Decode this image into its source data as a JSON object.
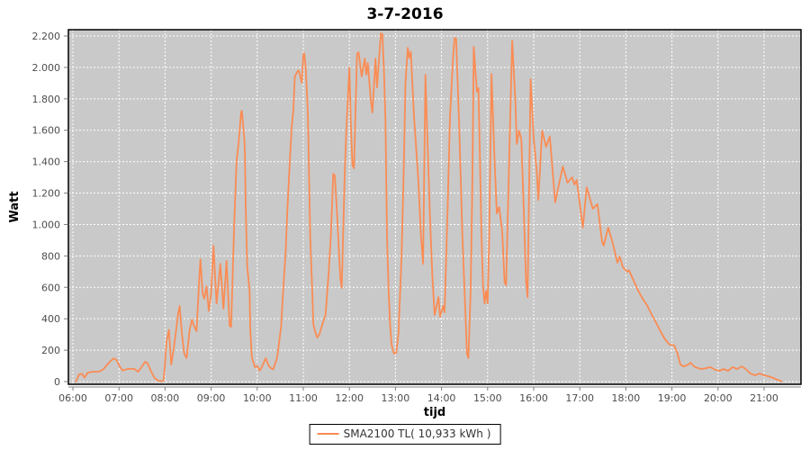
{
  "chart_data": {
    "type": "line",
    "title": "3-7-2016",
    "xlabel": "tijd",
    "ylabel": "Watt",
    "grid": true,
    "legend_position": "bottom-center",
    "x_axis": {
      "unit": "time",
      "first_tick": "06:00",
      "last_tick": "21:00",
      "tick_interval_minutes": 60
    },
    "y_axis": {
      "min": 0,
      "max": 2240,
      "tick_interval": 200
    },
    "x_ticks": [
      {
        "hour": 6,
        "label": "06:00"
      },
      {
        "hour": 7,
        "label": "07:00"
      },
      {
        "hour": 8,
        "label": "08:00"
      },
      {
        "hour": 9,
        "label": "09:00"
      },
      {
        "hour": 10,
        "label": "10:00"
      },
      {
        "hour": 11,
        "label": "11:00"
      },
      {
        "hour": 12,
        "label": "12:00"
      },
      {
        "hour": 13,
        "label": "13:00"
      },
      {
        "hour": 14,
        "label": "14:00"
      },
      {
        "hour": 15,
        "label": "15:00"
      },
      {
        "hour": 16,
        "label": "16:00"
      },
      {
        "hour": 17,
        "label": "17:00"
      },
      {
        "hour": 18,
        "label": "18:00"
      },
      {
        "hour": 19,
        "label": "19:00"
      },
      {
        "hour": 20,
        "label": "20:00"
      },
      {
        "hour": 21,
        "label": "21:00"
      }
    ],
    "y_ticks": [
      {
        "value": 0,
        "label": "0"
      },
      {
        "value": 200,
        "label": "200"
      },
      {
        "value": 400,
        "label": "400"
      },
      {
        "value": 600,
        "label": "600"
      },
      {
        "value": 800,
        "label": "800"
      },
      {
        "value": 1000,
        "label": "1.000"
      },
      {
        "value": 1200,
        "label": "1.200"
      },
      {
        "value": 1400,
        "label": "1.400"
      },
      {
        "value": 1600,
        "label": "1.600"
      },
      {
        "value": 1800,
        "label": "1.800"
      },
      {
        "value": 2000,
        "label": "2.000"
      },
      {
        "value": 2200,
        "label": "2.200"
      }
    ],
    "series": [
      {
        "name": "SMA2100 TL( 10,933 kWh )",
        "color": "#fa8c54",
        "points_min_watt": [
          [
            364,
            0
          ],
          [
            368,
            45
          ],
          [
            372,
            50
          ],
          [
            375,
            25
          ],
          [
            379,
            55
          ],
          [
            384,
            62
          ],
          [
            390,
            63
          ],
          [
            395,
            65
          ],
          [
            400,
            80
          ],
          [
            405,
            110
          ],
          [
            410,
            135
          ],
          [
            413,
            148
          ],
          [
            417,
            137
          ],
          [
            421,
            95
          ],
          [
            425,
            70
          ],
          [
            429,
            78
          ],
          [
            434,
            82
          ],
          [
            440,
            80
          ],
          [
            445,
            63
          ],
          [
            450,
            97
          ],
          [
            454,
            126
          ],
          [
            457,
            118
          ],
          [
            462,
            63
          ],
          [
            466,
            25
          ],
          [
            470,
            8
          ],
          [
            475,
            3
          ],
          [
            478,
            5
          ],
          [
            480,
            120
          ],
          [
            482,
            258
          ],
          [
            485,
            330
          ],
          [
            488,
            109
          ],
          [
            491,
            200
          ],
          [
            494,
            310
          ],
          [
            497,
            430
          ],
          [
            499,
            481
          ],
          [
            502,
            300
          ],
          [
            505,
            180
          ],
          [
            508,
            149
          ],
          [
            512,
            330
          ],
          [
            515,
            395
          ],
          [
            518,
            350
          ],
          [
            521,
            321
          ],
          [
            524,
            600
          ],
          [
            526,
            779
          ],
          [
            529,
            560
          ],
          [
            531,
            527
          ],
          [
            534,
            607
          ],
          [
            537,
            450
          ],
          [
            540,
            560
          ],
          [
            543,
            865
          ],
          [
            547,
            498
          ],
          [
            550,
            640
          ],
          [
            552,
            750
          ],
          [
            556,
            464
          ],
          [
            560,
            768
          ],
          [
            564,
            355
          ],
          [
            566,
            349
          ],
          [
            570,
            997
          ],
          [
            573,
            1398
          ],
          [
            576,
            1530
          ],
          [
            579,
            1713
          ],
          [
            580,
            1724
          ],
          [
            583,
            1560
          ],
          [
            584,
            1466
          ],
          [
            585,
            1111
          ],
          [
            587,
            728
          ],
          [
            590,
            584
          ],
          [
            591,
            327
          ],
          [
            593,
            155
          ],
          [
            597,
            92
          ],
          [
            600,
            100
          ],
          [
            603,
            70
          ],
          [
            606,
            92
          ],
          [
            611,
            149
          ],
          [
            615,
            100
          ],
          [
            618,
            85
          ],
          [
            621,
            78
          ],
          [
            626,
            155
          ],
          [
            631,
            349
          ],
          [
            634,
            596
          ],
          [
            637,
            825
          ],
          [
            639,
            1071
          ],
          [
            641,
            1266
          ],
          [
            643,
            1455
          ],
          [
            645,
            1627
          ],
          [
            647,
            1724
          ],
          [
            649,
            1942
          ],
          [
            652,
            1971
          ],
          [
            654,
            1982
          ],
          [
            658,
            1902
          ],
          [
            660,
            2074
          ],
          [
            661,
            2091
          ],
          [
            663,
            2011
          ],
          [
            666,
            1701
          ],
          [
            667,
            1438
          ],
          [
            669,
            922
          ],
          [
            672,
            538
          ],
          [
            673,
            367
          ],
          [
            675,
            327
          ],
          [
            678,
            281
          ],
          [
            681,
            300
          ],
          [
            685,
            367
          ],
          [
            689,
            424
          ],
          [
            693,
            693
          ],
          [
            696,
            940
          ],
          [
            699,
            1323
          ],
          [
            701,
            1312
          ],
          [
            704,
            1071
          ],
          [
            708,
            670
          ],
          [
            710,
            596
          ],
          [
            714,
            1340
          ],
          [
            716,
            1598
          ],
          [
            720,
            1999
          ],
          [
            722,
            1627
          ],
          [
            724,
            1380
          ],
          [
            726,
            1358
          ],
          [
            730,
            2085
          ],
          [
            732,
            2097
          ],
          [
            736,
            1942
          ],
          [
            740,
            2057
          ],
          [
            742,
            1953
          ],
          [
            744,
            2028
          ],
          [
            748,
            1788
          ],
          [
            750,
            1713
          ],
          [
            754,
            2057
          ],
          [
            756,
            1873
          ],
          [
            759,
            2080
          ],
          [
            761,
            2217
          ],
          [
            763,
            2210
          ],
          [
            765,
            1982
          ],
          [
            767,
            1667
          ],
          [
            769,
            922
          ],
          [
            771,
            596
          ],
          [
            773,
            367
          ],
          [
            775,
            235
          ],
          [
            778,
            178
          ],
          [
            781,
            183
          ],
          [
            784,
            309
          ],
          [
            788,
            800
          ],
          [
            791,
            1400
          ],
          [
            793,
            1900
          ],
          [
            796,
            2125
          ],
          [
            798,
            2060
          ],
          [
            800,
            2100
          ],
          [
            804,
            1700
          ],
          [
            810,
            1266
          ],
          [
            813,
            940
          ],
          [
            816,
            750
          ],
          [
            819,
            1953
          ],
          [
            822,
            1500
          ],
          [
            825,
            1037
          ],
          [
            828,
            670
          ],
          [
            831,
            424
          ],
          [
            836,
            538
          ],
          [
            838,
            412
          ],
          [
            842,
            481
          ],
          [
            844,
            441
          ],
          [
            848,
            1111
          ],
          [
            851,
            1684
          ],
          [
            855,
            2068
          ],
          [
            857,
            2188
          ],
          [
            859,
            2183
          ],
          [
            863,
            1627
          ],
          [
            865,
            1301
          ],
          [
            867,
            957
          ],
          [
            871,
            441
          ],
          [
            873,
            178
          ],
          [
            875,
            149
          ],
          [
            878,
            596
          ],
          [
            880,
            1209
          ],
          [
            882,
            2131
          ],
          [
            886,
            1845
          ],
          [
            888,
            1868
          ],
          [
            890,
            1415
          ],
          [
            892,
            922
          ],
          [
            894,
            613
          ],
          [
            896,
            498
          ],
          [
            898,
            578
          ],
          [
            900,
            498
          ],
          [
            902,
            900
          ],
          [
            905,
            1959
          ],
          [
            909,
            1415
          ],
          [
            912,
            1071
          ],
          [
            915,
            1111
          ],
          [
            919,
            957
          ],
          [
            922,
            636
          ],
          [
            924,
            613
          ],
          [
            928,
            1400
          ],
          [
            932,
            2171
          ],
          [
            936,
            1800
          ],
          [
            938,
            1512
          ],
          [
            941,
            1598
          ],
          [
            944,
            1540
          ],
          [
            947,
            1100
          ],
          [
            950,
            640
          ],
          [
            952,
            538
          ],
          [
            956,
            1924
          ],
          [
            960,
            1550
          ],
          [
            964,
            1340
          ],
          [
            966,
            1157
          ],
          [
            971,
            1598
          ],
          [
            976,
            1495
          ],
          [
            981,
            1560
          ],
          [
            988,
            1140
          ],
          [
            993,
            1260
          ],
          [
            998,
            1369
          ],
          [
            1004,
            1266
          ],
          [
            1010,
            1301
          ],
          [
            1013,
            1254
          ],
          [
            1016,
            1283
          ],
          [
            1022,
            1054
          ],
          [
            1024,
            980
          ],
          [
            1029,
            1237
          ],
          [
            1037,
            1100
          ],
          [
            1043,
            1129
          ],
          [
            1049,
            894
          ],
          [
            1051,
            865
          ],
          [
            1057,
            980
          ],
          [
            1063,
            880
          ],
          [
            1069,
            757
          ],
          [
            1072,
            796
          ],
          [
            1076,
            728
          ],
          [
            1082,
            699
          ],
          [
            1084,
            710
          ],
          [
            1090,
            645
          ],
          [
            1096,
            578
          ],
          [
            1102,
            527
          ],
          [
            1108,
            481
          ],
          [
            1114,
            424
          ],
          [
            1119,
            378
          ],
          [
            1125,
            321
          ],
          [
            1131,
            269
          ],
          [
            1137,
            235
          ],
          [
            1143,
            230
          ],
          [
            1147,
            183
          ],
          [
            1151,
            109
          ],
          [
            1155,
            97
          ],
          [
            1160,
            105
          ],
          [
            1164,
            120
          ],
          [
            1170,
            92
          ],
          [
            1178,
            80
          ],
          [
            1184,
            85
          ],
          [
            1190,
            92
          ],
          [
            1196,
            75
          ],
          [
            1202,
            69
          ],
          [
            1207,
            80
          ],
          [
            1213,
            69
          ],
          [
            1219,
            92
          ],
          [
            1225,
            80
          ],
          [
            1231,
            97
          ],
          [
            1236,
            80
          ],
          [
            1242,
            52
          ],
          [
            1248,
            40
          ],
          [
            1254,
            52
          ],
          [
            1260,
            40
          ],
          [
            1266,
            34
          ],
          [
            1272,
            23
          ],
          [
            1277,
            12
          ],
          [
            1281,
            5
          ],
          [
            1283,
            2
          ]
        ]
      }
    ]
  },
  "legend": {
    "label": "SMA2100 TL( 10,933 kWh )"
  },
  "colors": {
    "series": "#fa8c54",
    "plot_background": "#c9c9c9",
    "gridline": "#ffffff",
    "plot_border": "#000000",
    "axis_line": "#808080",
    "tick_label": "#4d4d4d"
  }
}
